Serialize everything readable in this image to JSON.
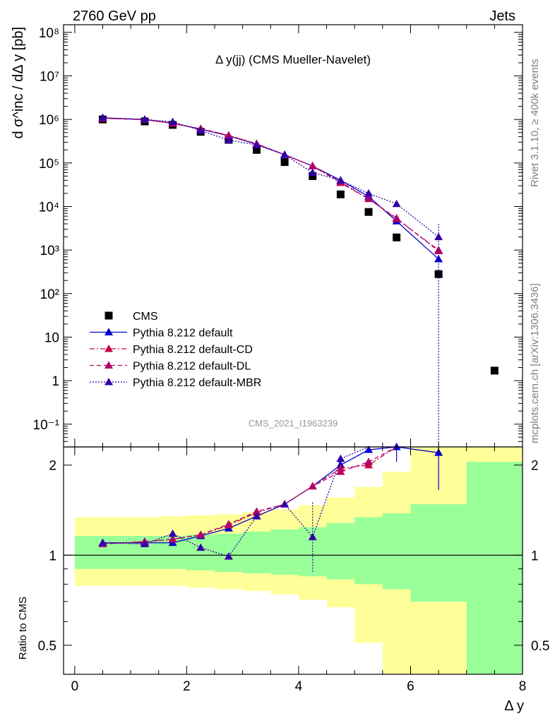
{
  "header": {
    "left": "2760 GeV pp",
    "right": "Jets"
  },
  "side_texts": {
    "rivet": "Rivet 3.1.10, ≥ 400k events",
    "mcplots": "mcplots.cern.ch [arXiv:1306.3436]"
  },
  "analysis_id": "CMS_2021_I1963239",
  "chart_data": [
    {
      "type": "scatter",
      "title": "Δ y(jj) (CMS Mueller-Navelet)",
      "ylabel": "d σ^inc / dΔ y [pb]",
      "xlabel": "Δ y",
      "yscale": "log",
      "xlim": [
        -0.2,
        8.0
      ],
      "ylim": [
        0.03,
        150000000.0
      ],
      "ytick_labels": [
        "10⁻¹",
        "1",
        "10",
        "10²",
        "10³",
        "10⁴",
        "10⁵",
        "10⁶",
        "10⁷",
        "10⁸"
      ],
      "x": [
        0.5,
        1.25,
        1.75,
        2.25,
        2.75,
        3.25,
        3.75,
        4.25,
        4.75,
        5.25,
        5.75,
        6.5,
        7.5
      ],
      "legend_position": "bottom-left",
      "series": [
        {
          "name": "CMS",
          "color": "#000000",
          "style": "square",
          "x": [
            0.5,
            1.25,
            1.75,
            2.25,
            2.75,
            3.25,
            3.75,
            4.25,
            4.75,
            5.25,
            5.75,
            6.5,
            7.5
          ],
          "values": [
            1000000.0,
            900000.0,
            750000.0,
            520000.0,
            340000.0,
            200000.0,
            105000.0,
            50000.0,
            19000.0,
            7500.0,
            1950.0,
            280,
            1.7
          ]
        },
        {
          "name": "Pythia 8.212 default",
          "color": "#0000cc",
          "style": "solid",
          "x": [
            0.5,
            1.25,
            1.75,
            2.25,
            2.75,
            3.25,
            3.75,
            4.25,
            4.75,
            5.25,
            5.75,
            6.5
          ],
          "values": [
            1080000.0,
            1000000.0,
            820000.0,
            600000.0,
            420000.0,
            270000.0,
            155000.0,
            85000.0,
            40000.0,
            17000.0,
            4600.0,
            620
          ]
        },
        {
          "name": "Pythia 8.212 default-CD",
          "color": "#cc0044",
          "style": "dash-dot",
          "x": [
            0.5,
            1.25,
            1.75,
            2.25,
            2.75,
            3.25,
            3.75,
            4.25,
            4.75,
            5.25,
            5.75,
            6.5
          ],
          "values": [
            1060000.0,
            990000.0,
            810000.0,
            610000.0,
            430000.0,
            275000.0,
            155000.0,
            85000.0,
            35000.0,
            15000.0,
            5200.0,
            1000
          ]
        },
        {
          "name": "Pythia 8.212 default-DL",
          "color": "#b3006b",
          "style": "dashed",
          "x": [
            0.5,
            1.25,
            1.75,
            2.25,
            2.75,
            3.25,
            3.75,
            4.25,
            4.75,
            5.25,
            5.75,
            6.5
          ],
          "values": [
            1060000.0,
            990000.0,
            810000.0,
            610000.0,
            430000.0,
            275000.0,
            155000.0,
            85000.0,
            37000.0,
            15000.0,
            5400.0,
            950
          ]
        },
        {
          "name": "Pythia 8.212 default-MBR",
          "color": "#3300aa",
          "style": "dotted",
          "x": [
            0.5,
            1.25,
            1.75,
            2.25,
            2.75,
            3.25,
            3.75,
            4.25,
            4.75,
            5.25,
            5.75,
            6.5
          ],
          "values": [
            1100000.0,
            1000000.0,
            880000.0,
            560000.0,
            335000.0,
            260000.0,
            155000.0,
            60000.0,
            40000.0,
            20000.0,
            11500.0,
            2000
          ]
        }
      ]
    },
    {
      "type": "line",
      "ylabel": "Ratio to CMS",
      "xlabel": "Δ y",
      "yscale": "log",
      "xlim": [
        -0.2,
        8.0
      ],
      "ylim": [
        0.4,
        2.3
      ],
      "yticks": [
        0.5,
        1,
        2
      ],
      "ytick_labels": [
        "0.5",
        "1",
        "2"
      ],
      "xticks": [
        0,
        2,
        4,
        6,
        8
      ],
      "xtick_labels": [
        "0",
        "2",
        "4",
        "6",
        "8"
      ],
      "reference_line": 1,
      "uncertainty_bands": {
        "bin_edges": [
          0,
          1,
          1.5,
          2,
          2.5,
          3,
          3.5,
          4,
          4.5,
          5,
          5.5,
          6,
          7,
          8
        ],
        "stat_lo": [
          0.9,
          0.9,
          0.9,
          0.89,
          0.88,
          0.87,
          0.86,
          0.85,
          0.83,
          0.8,
          0.77,
          0.7,
          0.4
        ],
        "stat_hi": [
          1.16,
          1.16,
          1.16,
          1.17,
          1.18,
          1.2,
          1.22,
          1.24,
          1.28,
          1.34,
          1.38,
          1.48,
          2.05
        ],
        "total_lo": [
          0.79,
          0.79,
          0.79,
          0.78,
          0.77,
          0.76,
          0.74,
          0.71,
          0.67,
          0.51,
          0.38,
          0.38,
          0.38
        ],
        "total_hi": [
          1.34,
          1.34,
          1.35,
          1.36,
          1.37,
          1.39,
          1.42,
          1.47,
          1.56,
          1.69,
          1.9,
          2.3,
          2.3
        ],
        "stat_color": "#99ff99",
        "total_color": "#ffff99"
      },
      "series": [
        {
          "name": "Pythia 8.212 default",
          "color": "#0000cc",
          "x": [
            0.5,
            1.25,
            1.75,
            2.25,
            2.75,
            3.25,
            3.75,
            4.25,
            4.75,
            5.25,
            5.75,
            6.5
          ],
          "values": [
            1.1,
            1.1,
            1.1,
            1.16,
            1.23,
            1.35,
            1.48,
            1.7,
            2.0,
            2.25,
            2.3,
            2.2
          ]
        },
        {
          "name": "Pythia 8.212 default-CD",
          "color": "#cc0044",
          "x": [
            0.5,
            1.25,
            1.75,
            2.25,
            2.75,
            3.25,
            3.75,
            4.25,
            4.75,
            5.25,
            5.75
          ],
          "values": [
            1.09,
            1.11,
            1.13,
            1.17,
            1.26,
            1.39,
            1.48,
            1.7,
            1.95,
            2.0,
            2.4
          ]
        },
        {
          "name": "Pythia 8.212 default-DL",
          "color": "#b3006b",
          "x": [
            0.5,
            1.25,
            1.75,
            2.25,
            2.75,
            3.25,
            3.75,
            4.25,
            4.75,
            5.25,
            5.75
          ],
          "values": [
            1.09,
            1.11,
            1.13,
            1.17,
            1.27,
            1.4,
            1.48,
            1.7,
            1.9,
            2.05,
            2.45
          ]
        },
        {
          "name": "Pythia 8.212 default-MBR",
          "color": "#3300aa",
          "x": [
            0.5,
            1.25,
            1.75,
            2.25,
            2.75,
            3.25,
            3.75,
            4.25,
            4.75,
            5.25
          ],
          "values": [
            1.1,
            1.09,
            1.18,
            1.06,
            0.99,
            1.35,
            1.48,
            1.15,
            2.1,
            2.35
          ]
        }
      ]
    }
  ]
}
